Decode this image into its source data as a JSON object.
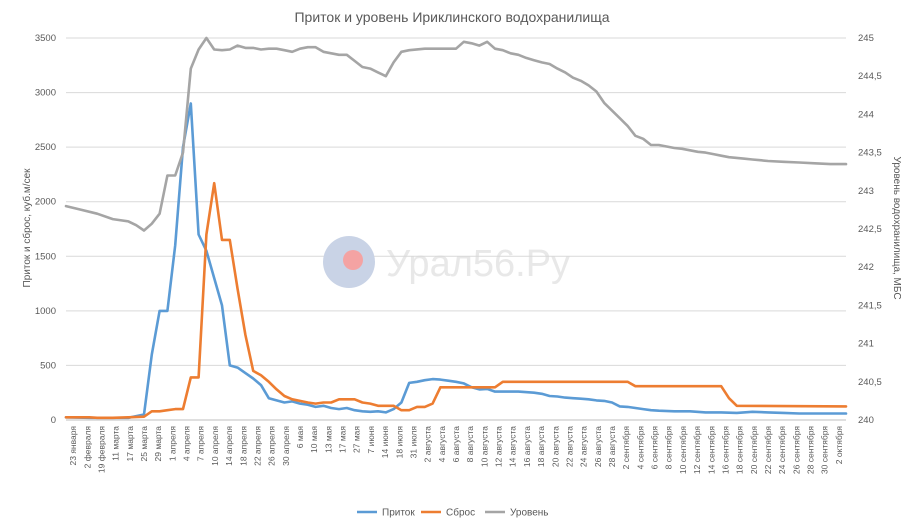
{
  "chart_data": {
    "type": "line",
    "title": "Приток и уровень Ириклинского водохранилища",
    "ylabel": "Приток и сброс, куб.м/сек",
    "y2label": "Уровень водохранилища, МБС",
    "ylim": [
      0,
      3500
    ],
    "yticks": [
      0,
      500,
      1000,
      1500,
      2000,
      2500,
      3000,
      3500
    ],
    "y2lim": [
      240,
      245
    ],
    "y2ticks": [
      "240",
      "240,5",
      "241",
      "241,5",
      "242",
      "242,5",
      "243",
      "243,5",
      "244",
      "244,5",
      "245"
    ],
    "x_labels": [
      "23 января",
      "2 февраля",
      "19 февраля",
      "11 марта",
      "17 марта",
      "25 марта",
      "29 марта",
      "1 апреля",
      "4 апреля",
      "7 апреля",
      "10 апреля",
      "14 апреля",
      "18 апреля",
      "22 апреля",
      "26 апреля",
      "30 апреля",
      "6 мая",
      "10 мая",
      "13 мая",
      "17 мая",
      "27 мая",
      "7 июня",
      "14 июня",
      "18 июля",
      "31 июля",
      "2 августа",
      "4 августа",
      "6 августа",
      "8 августа",
      "10 августа",
      "12 августа",
      "14 августа",
      "16 августа",
      "18 августа",
      "20 августа",
      "22 августа",
      "24 августа",
      "26 августа",
      "28 августа",
      "2 сентября",
      "4 сентября",
      "6 сентября",
      "8 сентября",
      "10 сентября",
      "12 сентября",
      "14 сентября",
      "16 сентября",
      "18 сентября",
      "20 сентября",
      "22 сентября",
      "24 сентября",
      "26 сентября",
      "28 сентября",
      "30 сентября",
      "2 октября"
    ],
    "grid": true,
    "legend_position": "bottom",
    "series": [
      {
        "name": "Приток",
        "axis": "left",
        "color": "#5b9bd5",
        "points": [
          [
            0,
            25
          ],
          [
            3,
            20
          ],
          [
            6,
            20
          ],
          [
            8,
            20
          ],
          [
            10,
            50
          ],
          [
            11,
            600
          ],
          [
            12,
            1000
          ],
          [
            13,
            1000
          ],
          [
            14,
            1600
          ],
          [
            15,
            2500
          ],
          [
            16,
            2900
          ],
          [
            17,
            1700
          ],
          [
            18,
            1550
          ],
          [
            19,
            1300
          ],
          [
            20,
            1050
          ],
          [
            21,
            500
          ],
          [
            22,
            480
          ],
          [
            23,
            430
          ],
          [
            24,
            380
          ],
          [
            25,
            320
          ],
          [
            26,
            200
          ],
          [
            27,
            180
          ],
          [
            28,
            160
          ],
          [
            29,
            170
          ],
          [
            30,
            150
          ],
          [
            31,
            140
          ],
          [
            32,
            120
          ],
          [
            33,
            130
          ],
          [
            34,
            110
          ],
          [
            35,
            100
          ],
          [
            36,
            110
          ],
          [
            37,
            90
          ],
          [
            38,
            80
          ],
          [
            39,
            75
          ],
          [
            40,
            80
          ],
          [
            41,
            70
          ],
          [
            42,
            100
          ],
          [
            43,
            160
          ],
          [
            44,
            340
          ],
          [
            45,
            350
          ],
          [
            46,
            365
          ],
          [
            47,
            375
          ],
          [
            48,
            370
          ],
          [
            49,
            360
          ],
          [
            50,
            350
          ],
          [
            51,
            335
          ],
          [
            52,
            300
          ],
          [
            53,
            280
          ],
          [
            54,
            285
          ],
          [
            55,
            260
          ],
          [
            56,
            260
          ],
          [
            58,
            260
          ],
          [
            60,
            250
          ],
          [
            61,
            240
          ],
          [
            62,
            220
          ],
          [
            63,
            215
          ],
          [
            64,
            205
          ],
          [
            65,
            200
          ],
          [
            66,
            195
          ],
          [
            67,
            190
          ],
          [
            68,
            180
          ],
          [
            69,
            175
          ],
          [
            70,
            160
          ],
          [
            71,
            125
          ],
          [
            72,
            120
          ],
          [
            73,
            110
          ],
          [
            74,
            100
          ],
          [
            75,
            90
          ],
          [
            76,
            85
          ],
          [
            78,
            80
          ],
          [
            80,
            80
          ],
          [
            82,
            70
          ],
          [
            84,
            70
          ],
          [
            86,
            65
          ],
          [
            88,
            75
          ],
          [
            90,
            70
          ],
          [
            92,
            65
          ],
          [
            94,
            60
          ],
          [
            96,
            60
          ],
          [
            98,
            60
          ],
          [
            100,
            60
          ]
        ]
      },
      {
        "name": "Сброс",
        "axis": "left",
        "color": "#ed7d31",
        "points": [
          [
            0,
            25
          ],
          [
            3,
            25
          ],
          [
            4,
            20
          ],
          [
            6,
            20
          ],
          [
            8,
            25
          ],
          [
            10,
            30
          ],
          [
            11,
            80
          ],
          [
            12,
            80
          ],
          [
            13,
            90
          ],
          [
            14,
            100
          ],
          [
            15,
            100
          ],
          [
            16,
            390
          ],
          [
            17,
            390
          ],
          [
            18,
            1700
          ],
          [
            19,
            2170
          ],
          [
            20,
            1650
          ],
          [
            21,
            1650
          ],
          [
            22,
            1200
          ],
          [
            23,
            780
          ],
          [
            24,
            450
          ],
          [
            25,
            410
          ],
          [
            26,
            350
          ],
          [
            27,
            280
          ],
          [
            28,
            220
          ],
          [
            29,
            190
          ],
          [
            30,
            175
          ],
          [
            31,
            160
          ],
          [
            32,
            150
          ],
          [
            33,
            160
          ],
          [
            34,
            160
          ],
          [
            35,
            190
          ],
          [
            36,
            190
          ],
          [
            37,
            190
          ],
          [
            38,
            160
          ],
          [
            39,
            150
          ],
          [
            40,
            130
          ],
          [
            42,
            130
          ],
          [
            43,
            90
          ],
          [
            44,
            90
          ],
          [
            45,
            120
          ],
          [
            46,
            120
          ],
          [
            47,
            150
          ],
          [
            48,
            300
          ],
          [
            55,
            300
          ],
          [
            56,
            350
          ],
          [
            72,
            350
          ],
          [
            73,
            310
          ],
          [
            84,
            310
          ],
          [
            85,
            200
          ],
          [
            86,
            130
          ],
          [
            100,
            125
          ]
        ]
      },
      {
        "name": "Уровень",
        "axis": "right",
        "color": "#a5a5a5",
        "points": [
          [
            0,
            242.8
          ],
          [
            2,
            242.75
          ],
          [
            4,
            242.7
          ],
          [
            6,
            242.63
          ],
          [
            8,
            242.6
          ],
          [
            9,
            242.55
          ],
          [
            10,
            242.48
          ],
          [
            11,
            242.57
          ],
          [
            12,
            242.7
          ],
          [
            13,
            243.2
          ],
          [
            14,
            243.2
          ],
          [
            15,
            243.5
          ],
          [
            16,
            244.6
          ],
          [
            17,
            244.85
          ],
          [
            18,
            245
          ],
          [
            19,
            244.85
          ],
          [
            20,
            244.84
          ],
          [
            21,
            244.85
          ],
          [
            22,
            244.9
          ],
          [
            23,
            244.87
          ],
          [
            24,
            244.87
          ],
          [
            25,
            244.85
          ],
          [
            26,
            244.86
          ],
          [
            27,
            244.86
          ],
          [
            28,
            244.84
          ],
          [
            29,
            244.82
          ],
          [
            30,
            244.86
          ],
          [
            31,
            244.88
          ],
          [
            32,
            244.88
          ],
          [
            33,
            244.82
          ],
          [
            34,
            244.8
          ],
          [
            35,
            244.78
          ],
          [
            36,
            244.78
          ],
          [
            37,
            244.7
          ],
          [
            38,
            244.62
          ],
          [
            39,
            244.6
          ],
          [
            40,
            244.55
          ],
          [
            41,
            244.5
          ],
          [
            42,
            244.68
          ],
          [
            43,
            244.82
          ],
          [
            44,
            244.84
          ],
          [
            46,
            244.86
          ],
          [
            49,
            244.86
          ],
          [
            50,
            244.86
          ],
          [
            51,
            244.95
          ],
          [
            52,
            244.93
          ],
          [
            53,
            244.9
          ],
          [
            54,
            244.95
          ],
          [
            55,
            244.86
          ],
          [
            56,
            244.84
          ],
          [
            57,
            244.8
          ],
          [
            58,
            244.78
          ],
          [
            59,
            244.74
          ],
          [
            60,
            244.71
          ],
          [
            61,
            244.68
          ],
          [
            62,
            244.66
          ],
          [
            63,
            244.6
          ],
          [
            64,
            244.55
          ],
          [
            65,
            244.48
          ],
          [
            66,
            244.44
          ],
          [
            67,
            244.38
          ],
          [
            68,
            244.3
          ],
          [
            69,
            244.15
          ],
          [
            70,
            244.05
          ],
          [
            71,
            243.95
          ],
          [
            72,
            243.85
          ],
          [
            73,
            243.72
          ],
          [
            74,
            243.68
          ],
          [
            75,
            243.6
          ],
          [
            76,
            243.6
          ],
          [
            77,
            243.58
          ],
          [
            78,
            243.56
          ],
          [
            79,
            243.55
          ],
          [
            80,
            243.53
          ],
          [
            81,
            243.51
          ],
          [
            82,
            243.5
          ],
          [
            83,
            243.48
          ],
          [
            84,
            243.46
          ],
          [
            85,
            243.44
          ],
          [
            86,
            243.43
          ],
          [
            87,
            243.42
          ],
          [
            88,
            243.41
          ],
          [
            89,
            243.4
          ],
          [
            90,
            243.39
          ],
          [
            92,
            243.38
          ],
          [
            94,
            243.37
          ],
          [
            96,
            243.36
          ],
          [
            98,
            243.35
          ],
          [
            100,
            243.35
          ]
        ]
      }
    ]
  },
  "watermark": {
    "text": "Урал56.Ру",
    "logo_outer_color": "#c9d3e6",
    "logo_inner_color": "#f4a3a3"
  },
  "colors": {
    "grid": "#d9d9d9",
    "text": "#595959"
  }
}
